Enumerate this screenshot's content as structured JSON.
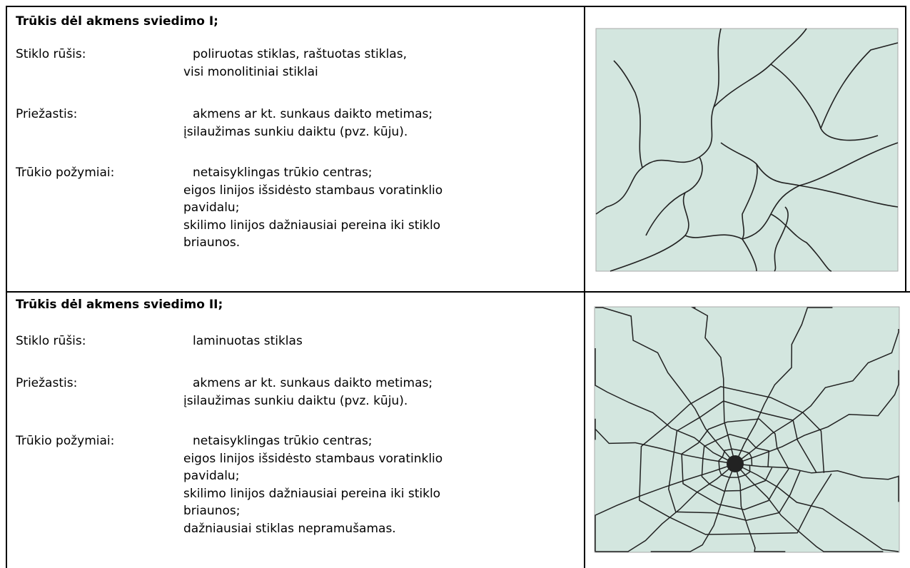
{
  "rows": [
    {
      "title": "Trūkis dėl akmens sviedimo I;",
      "fields": [
        {
          "label": "Stiklo rūšis:",
          "lines": [
            "poliruotas stiklas, raštuotas stiklas,",
            "visi monolitiniai stiklai"
          ]
        },
        {
          "label": "Priežastis:",
          "lines": [
            "akmens ar kt. sunkaus daikto metimas;",
            "įsilaužimas sunkiu daiktu (pvz. kūju)."
          ]
        },
        {
          "label": "Trūkio požymiai:",
          "lines": [
            "netaisyklingas trūkio centras;",
            "eigos linijos išsidėsto stambaus voratinklio",
            "pavidalu;",
            "skilimo linijos dažniausiai pereina iki stiklo",
            "briaunos."
          ]
        }
      ]
    },
    {
      "title": "Trūkis dėl akmens sviedimo II;",
      "fields": [
        {
          "label": "Stiklo rūšis:",
          "lines": [
            "laminuotas stiklas"
          ]
        },
        {
          "label": "Priežastis:",
          "lines": [
            "akmens ar kt. sunkaus daikto metimas;",
            "įsilaužimas sunkiu daiktu (pvz. kūju)."
          ]
        },
        {
          "label": "Trūkio požymiai:",
          "lines": [
            "netaisyklingas trūkio centras;",
            "eigos linijos išsidėsto stambaus voratinklio",
            "pavidalu;",
            "skilimo linijos dažniausiai pereina iki stiklo",
            "briaunos;",
            "dažniausiai stiklas nepramušamas."
          ]
        }
      ]
    }
  ]
}
